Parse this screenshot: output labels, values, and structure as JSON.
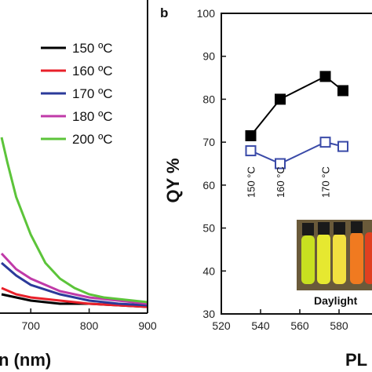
{
  "chart_data": [
    {
      "panel": "",
      "type": "line",
      "xlabel": "n (nm)",
      "ylabel": "",
      "x_ticks": [
        "700",
        "800",
        "900"
      ],
      "xlim": [
        650,
        900
      ],
      "legend_position": "top-right",
      "series": [
        {
          "name": "150 ºC",
          "color": "#000000",
          "x": [
            650,
            675,
            700,
            750,
            800,
            850,
            900
          ],
          "y": [
            0.05,
            0.04,
            0.03,
            0.02,
            0.02,
            0.015,
            0.01
          ]
        },
        {
          "name": "160 ºC",
          "color": "#e8202a",
          "x": [
            650,
            675,
            700,
            750,
            800,
            850,
            900
          ],
          "y": [
            0.07,
            0.05,
            0.04,
            0.03,
            0.02,
            0.015,
            0.01
          ]
        },
        {
          "name": "170 ºC",
          "color": "#2b3a9a",
          "x": [
            650,
            675,
            700,
            750,
            800,
            850,
            900
          ],
          "y": [
            0.15,
            0.11,
            0.08,
            0.05,
            0.03,
            0.02,
            0.015
          ]
        },
        {
          "name": "180 ºC",
          "color": "#c03aa8",
          "x": [
            650,
            675,
            700,
            750,
            800,
            850,
            900
          ],
          "y": [
            0.18,
            0.13,
            0.1,
            0.06,
            0.04,
            0.03,
            0.02
          ]
        },
        {
          "name": "200 ºC",
          "color": "#5cc43a",
          "x": [
            650,
            660,
            675,
            700,
            725,
            750,
            775,
            800,
            825,
            850,
            875,
            900
          ],
          "y": [
            0.55,
            0.47,
            0.36,
            0.24,
            0.15,
            0.1,
            0.07,
            0.05,
            0.04,
            0.035,
            0.03,
            0.025
          ]
        }
      ]
    },
    {
      "panel": "b",
      "type": "line",
      "xlabel": "PL",
      "ylabel": "QY %",
      "xlim": [
        520,
        600
      ],
      "ylim": [
        30,
        100
      ],
      "x_ticks": [
        520,
        540,
        560,
        580
      ],
      "y_ticks": [
        30,
        40,
        50,
        60,
        70,
        80,
        90,
        100
      ],
      "series": [
        {
          "name": "",
          "marker": "filled-square",
          "color": "#000000",
          "x": [
            535,
            550,
            573,
            582
          ],
          "y": [
            71.5,
            80,
            85.3,
            82
          ]
        },
        {
          "name": "",
          "marker": "open-square",
          "color": "#3a4aa8",
          "x": [
            535,
            550,
            573,
            582
          ],
          "y": [
            68,
            65,
            70,
            69
          ]
        }
      ],
      "annotations": [
        {
          "text": "150 °C",
          "x": 535
        },
        {
          "text": "160 °C",
          "x": 550
        },
        {
          "text": "170 °C",
          "x": 573
        }
      ],
      "inset_caption": "Daylight"
    }
  ]
}
